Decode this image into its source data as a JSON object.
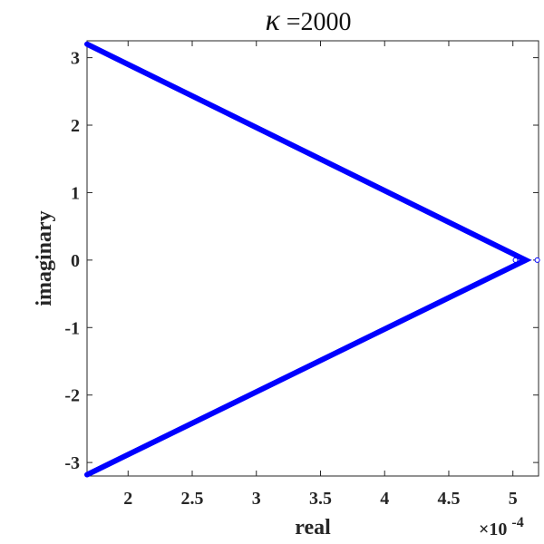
{
  "chart_data": {
    "type": "line",
    "title_symbol": "κ",
    "title_suffix": " =2000",
    "xlabel": "real",
    "ylabel": "imaginary",
    "x_multiplier_base": "×10",
    "x_multiplier_exponent": "-4",
    "xlim": [
      1.68,
      5.2
    ],
    "ylim": [
      -3.2,
      3.25
    ],
    "xticks": [
      2,
      2.5,
      3,
      3.5,
      4,
      4.5,
      5
    ],
    "xtick_labels": [
      "2",
      "2.5",
      "3",
      "3.5",
      "4",
      "4.5",
      "5"
    ],
    "yticks": [
      -3,
      -2,
      -1,
      0,
      1,
      2,
      3
    ],
    "ytick_labels": [
      "-3",
      "-2",
      "-1",
      "0",
      "1",
      "2",
      "3"
    ],
    "grid": false,
    "series": [
      {
        "color": "#0000ff",
        "x": [
          1.68,
          5.1,
          1.68
        ],
        "y": [
          3.2,
          0.0,
          -3.18
        ]
      }
    ],
    "markers": {
      "color": "#0000ff",
      "x": [
        5.02,
        5.09,
        5.19
      ],
      "y": [
        0.0,
        0.0,
        0.0
      ]
    }
  }
}
